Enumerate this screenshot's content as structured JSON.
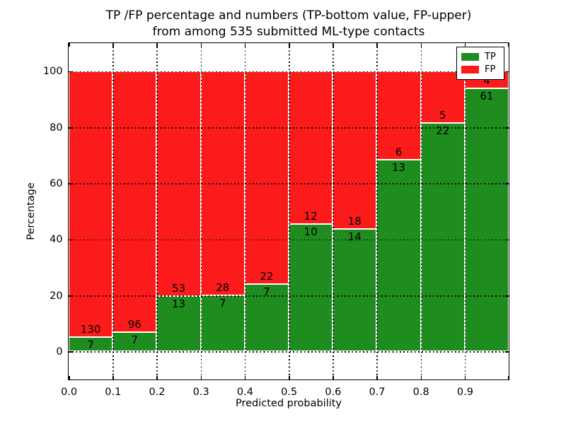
{
  "figure": {
    "title_line1": "TP /FP percentage and numbers (TP-bottom value, FP-upper)",
    "title_line2": "from among 535 submitted ML-type contacts"
  },
  "chart_data": {
    "type": "bar",
    "stacked": true,
    "normalized": "each bar totals 100%",
    "title": "TP /FP percentage and numbers (TP-bottom value, FP-upper)\nfrom among 535 submitted ML-type contacts",
    "xlabel": "Predicted probability",
    "ylabel": "Percentage",
    "total_contacts": 535,
    "categories": [
      "0.0",
      "0.1",
      "0.2",
      "0.3",
      "0.4",
      "0.5",
      "0.6",
      "0.7",
      "0.8",
      "0.9"
    ],
    "bin_width": 0.1,
    "series": [
      {
        "name": "TP",
        "color": "#1e8c1e",
        "position": "bottom",
        "counts": [
          7,
          7,
          13,
          7,
          7,
          10,
          14,
          13,
          22,
          61
        ],
        "percent": [
          5.1,
          6.8,
          19.7,
          20.0,
          24.1,
          45.5,
          43.8,
          68.4,
          81.5,
          93.8
        ]
      },
      {
        "name": "FP",
        "color": "#fb1b1b",
        "position": "top",
        "counts": [
          130,
          96,
          53,
          28,
          22,
          12,
          18,
          6,
          5,
          4
        ],
        "percent": [
          94.9,
          93.2,
          80.3,
          80.0,
          75.9,
          54.5,
          56.2,
          31.6,
          18.5,
          6.2
        ]
      }
    ],
    "y_ticks": [
      0,
      20,
      40,
      60,
      80,
      100
    ],
    "ylim": [
      -10,
      110
    ],
    "xlim": [
      0,
      1.0
    ],
    "grid": "dotted black, vertical at each x tick and horizontal at each y tick, drawn over bars",
    "bar_edge_color": "#ffffff",
    "legend": {
      "position": "upper right",
      "entries": [
        {
          "label": "TP",
          "color": "#1e8c1e"
        },
        {
          "label": "FP",
          "color": "#fb1b1b"
        }
      ]
    }
  }
}
